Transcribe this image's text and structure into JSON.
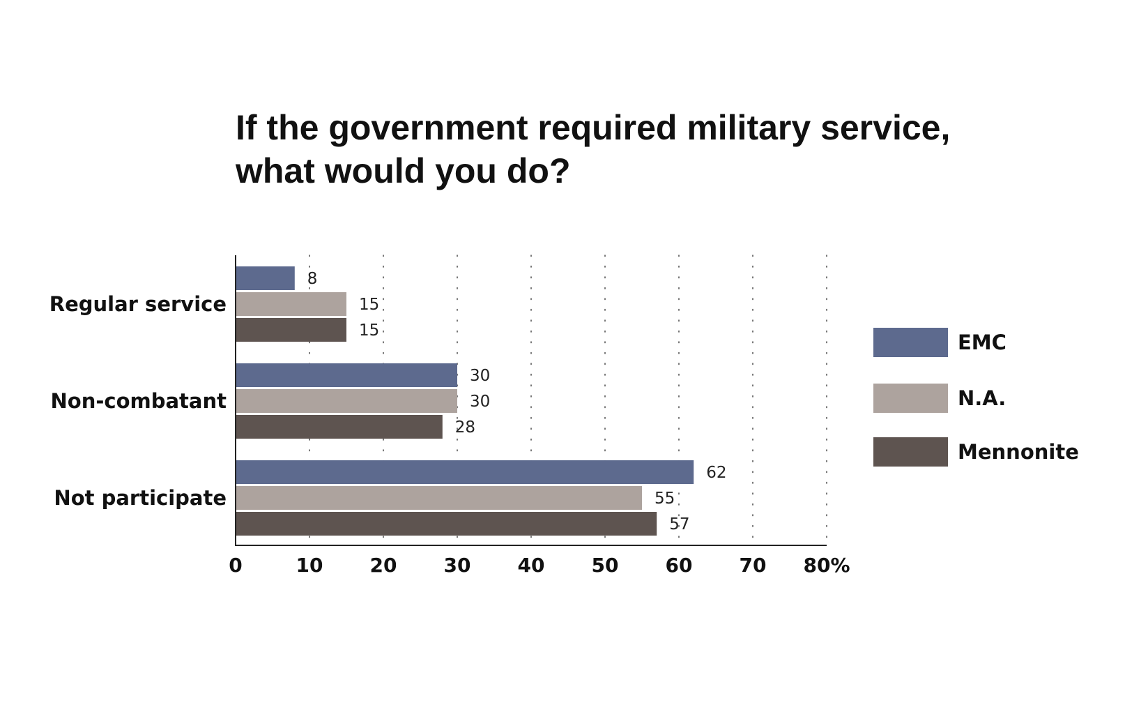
{
  "chart_data": {
    "type": "bar",
    "orientation": "horizontal",
    "title": "If the government required military service, what would you do?",
    "title_lines": [
      "If the government required military service,",
      "what would you do?"
    ],
    "categories": [
      "Regular service",
      "Non-combatant",
      "Not participate"
    ],
    "series": [
      {
        "name": "EMC",
        "color": "#5d6a8e",
        "values": [
          8,
          30,
          62
        ]
      },
      {
        "name": "N.A.",
        "color": "#ada39e",
        "values": [
          15,
          30,
          55
        ]
      },
      {
        "name": "Mennonite",
        "color": "#5e5450",
        "values": [
          15,
          28,
          57
        ]
      }
    ],
    "xlim": [
      0,
      80
    ],
    "x_ticks": [
      "0",
      "10",
      "20",
      "30",
      "40",
      "50",
      "60",
      "70",
      "80%"
    ],
    "xlabel": "",
    "ylabel": "",
    "grid": "vertical dotted",
    "legend_position": "right",
    "data_labels": true
  }
}
